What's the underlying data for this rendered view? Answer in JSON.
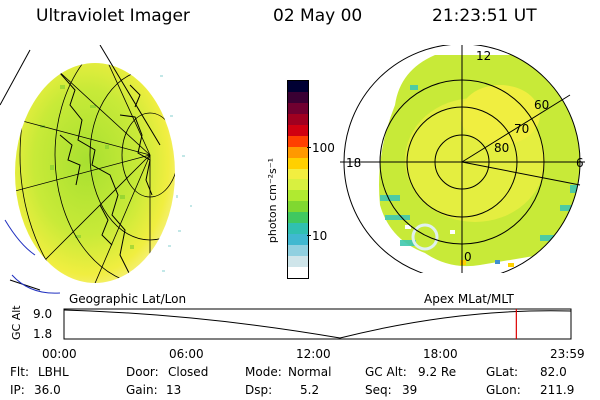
{
  "header": {
    "title": "Ultraviolet Imager",
    "date": "02 May 00",
    "time": "21:23:51 UT"
  },
  "colorbar": {
    "units": "photon cm⁻²s⁻¹",
    "ticks": [
      "100",
      "10"
    ],
    "colors": [
      "#000033",
      "#3a0033",
      "#700030",
      "#a00020",
      "#d00010",
      "#ff4000",
      "#ff9900",
      "#ffd000",
      "#f2ee40",
      "#d8f040",
      "#b0ea30",
      "#80d830",
      "#40c860",
      "#30c0b0",
      "#40b8d0",
      "#90d0e0",
      "#cfe5ea",
      "#ffffff"
    ]
  },
  "geo_map": {
    "caption": "Geographic Lat/Lon"
  },
  "polar_map": {
    "caption": "Apex MLat/MLT",
    "mlt_labels": [
      "12",
      "18",
      "6",
      "0"
    ],
    "mlat_labels": [
      "60",
      "70",
      "80"
    ]
  },
  "altitude_plot": {
    "ylabel": "GC Alt",
    "yticks": [
      "9.0",
      "1.8"
    ],
    "xticks": [
      "00:00",
      "06:00",
      "12:00",
      "18:00",
      "23:59"
    ],
    "marker_time": "21:23:51",
    "marker_color": "#dd0000"
  },
  "info": {
    "flt_label": "Flt:",
    "flt_value": "LBHL",
    "door_label": "Door:",
    "door_value": "Closed",
    "mode_label": "Mode:",
    "mode_value": "Normal",
    "gcalt_label": "GC Alt:",
    "gcalt_value": "9.2 Re",
    "glat_label": "GLat:",
    "glat_value": "82.0",
    "ip_label": "IP:",
    "ip_value": "36.0",
    "gain_label": "Gain:",
    "gain_value": "13",
    "dsp_label": "Dsp:",
    "dsp_value": "5.2",
    "seq_label": "Seq:",
    "seq_value": "39",
    "glon_label": "GLon:",
    "glon_value": "211.9"
  }
}
